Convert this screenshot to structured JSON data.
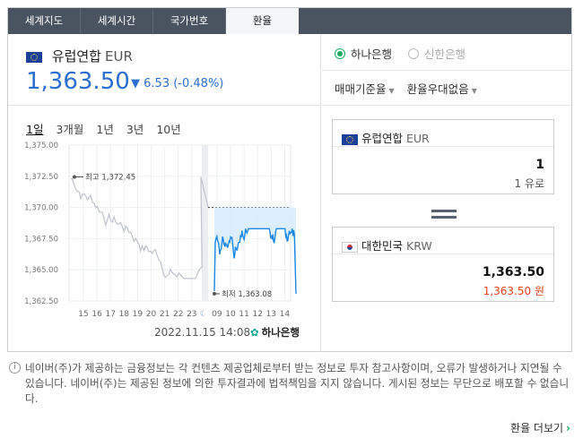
{
  "tabs": [
    "세계지도",
    "세계시간",
    "국가번호",
    "환율"
  ],
  "active_tab": 3,
  "currency": {
    "name": "유럽연합",
    "code": "EUR",
    "rate": "1,363.50",
    "change_arrow": "▼",
    "change": "6.53",
    "change_pct": "(-0.48%)"
  },
  "periods": [
    "1일",
    "3개월",
    "1년",
    "3년",
    "10년"
  ],
  "active_period": 0,
  "chart_data": {
    "type": "line",
    "y_ticks": [
      "1,375.00",
      "1,372.50",
      "1,370.00",
      "1,367.50",
      "1,365.00",
      "1,362.50"
    ],
    "ylim": [
      1362.5,
      1375.0
    ],
    "x_ticks": [
      "15",
      "16",
      "17",
      "18",
      "19",
      "20",
      "21",
      "22",
      "23",
      "09",
      "10",
      "11",
      "12",
      "13",
      "14"
    ],
    "high_label": "최고 1,372.45",
    "low_label": "최저 1,363.08",
    "previous_close": 1370.0,
    "colors": {
      "history": "#c3c6cf",
      "today": "#1e88e5",
      "today_fill": "#d9ecfc"
    }
  },
  "timestamp": "2022.11.15 14:08",
  "bank_logo": "하나은행",
  "banks": {
    "selected": "하나은행",
    "other": "신한은행"
  },
  "selects": {
    "basis": "매매기준율",
    "preferential": "환율우대없음"
  },
  "from": {
    "name": "유럽연합",
    "code": "EUR",
    "amount": "1",
    "unit_amount": "1 유로"
  },
  "to": {
    "name": "대한민국",
    "code": "KRW",
    "amount": "1,363.50",
    "unit_amount": "1,363.50 원"
  },
  "notice": "네이버(주)가 제공하는 금융정보는 각 컨텐츠 제공업체로부터 받는 정보로 투자 참고사항이며, 오류가 발생하거나 지연될 수 있습니다. 네이버(주)는 제공된 정보에 의한 투자결과에 법적책임을 지지 않습니다. 게시된 정보는 무단으로 배포할 수 없습니다.",
  "more_label": "환율 더보기"
}
